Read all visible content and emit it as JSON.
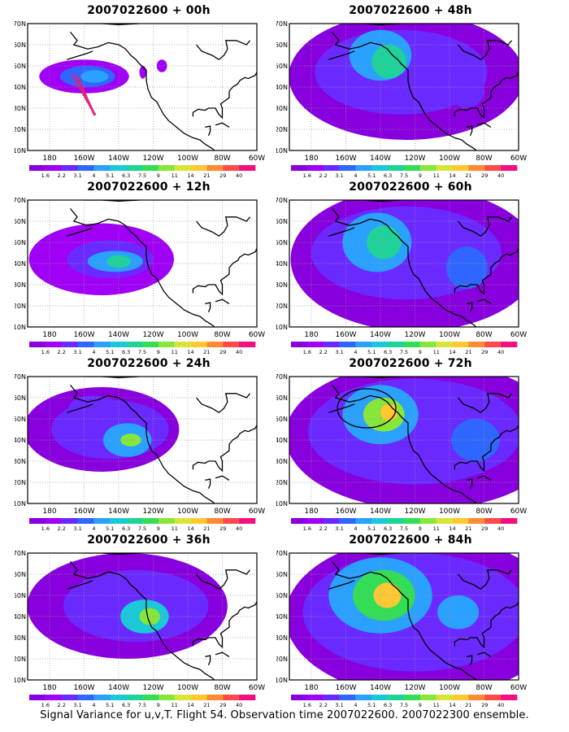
{
  "caption": "Signal Variance for u,v,T. Flight 54. Observation time 2007022600. 2007022300 ensemble.",
  "axes": {
    "lat_labels": [
      "70N",
      "60N",
      "50N",
      "40N",
      "30N",
      "20N",
      "10N"
    ],
    "lon_labels": [
      "180",
      "160W",
      "140W",
      "120W",
      "100W",
      "80W",
      "60W"
    ]
  },
  "colorbar": {
    "labels": [
      "1.6",
      "2.2",
      "3.1",
      "4",
      "5.1",
      "6.3",
      "7.5",
      "9",
      "11",
      "14",
      "21",
      "29",
      "40"
    ],
    "colors": [
      "#8800dd",
      "#a000f5",
      "#6a2aff",
      "#2f66ff",
      "#2aa0ff",
      "#1bc8d8",
      "#1fd29a",
      "#33dd55",
      "#88e63a",
      "#d8e43a",
      "#ffc833",
      "#ff8a33",
      "#ff4a4a",
      "#f01080"
    ]
  },
  "panels": [
    {
      "title": "2007022600 + 00h"
    },
    {
      "title": "2007022600 + 12h"
    },
    {
      "title": "2007022600 + 24h"
    },
    {
      "title": "2007022600 + 36h"
    },
    {
      "title": "2007022600 + 48h"
    },
    {
      "title": "2007022600 + 60h"
    },
    {
      "title": "2007022600 + 72h"
    },
    {
      "title": "2007022600 + 84h"
    }
  ]
}
